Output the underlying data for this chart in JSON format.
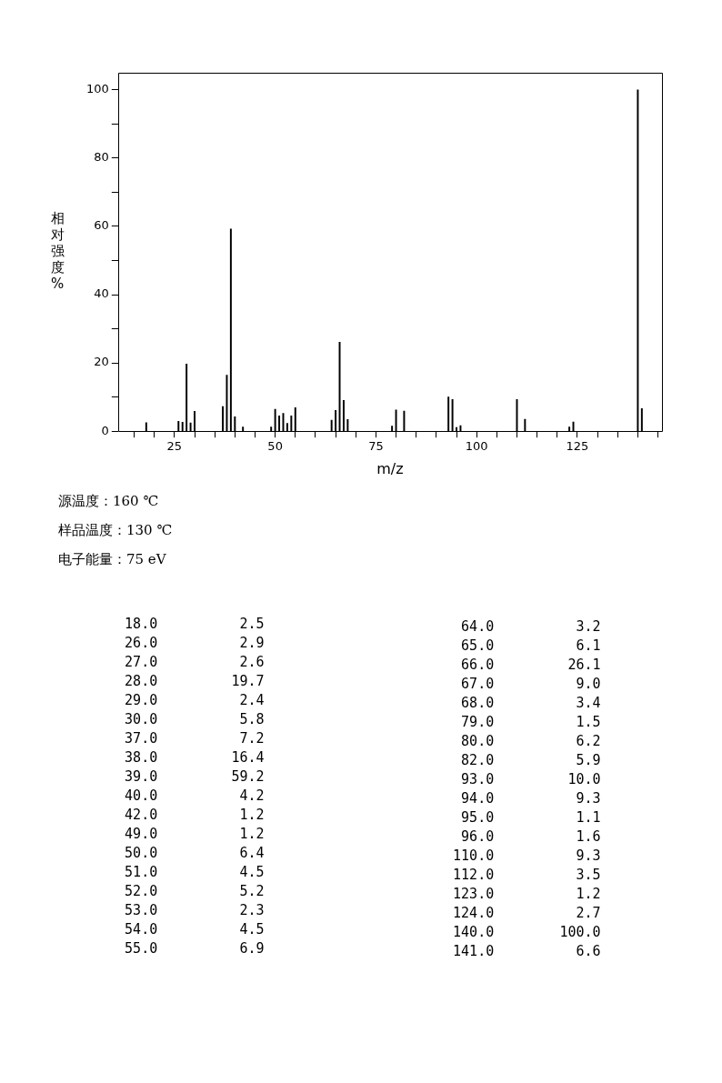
{
  "chart_data": [
    {
      "type": "bar",
      "xlabel": "m/z",
      "ylabel": "相对强度%",
      "color": "#000000",
      "x": [
        18,
        26,
        27,
        28,
        29,
        30,
        37,
        38,
        39,
        40,
        42,
        49,
        50,
        51,
        52,
        53,
        54,
        55,
        64,
        65,
        66,
        67,
        68,
        79,
        80,
        82,
        93,
        94,
        95,
        96,
        110,
        112,
        123,
        124,
        140,
        141
      ],
      "values": [
        2.5,
        2.9,
        2.6,
        19.7,
        2.4,
        5.8,
        7.2,
        16.4,
        59.2,
        4.2,
        1.2,
        1.2,
        6.4,
        4.5,
        5.2,
        2.3,
        4.5,
        6.9,
        3.2,
        6.1,
        26.1,
        9.0,
        3.4,
        1.5,
        6.2,
        5.9,
        10.0,
        9.3,
        1.1,
        1.6,
        9.3,
        3.5,
        1.2,
        2.7,
        100.0,
        6.6
      ],
      "xlim": [
        11,
        146
      ],
      "xticks": [
        {
          "value": 15,
          "label": null
        },
        {
          "value": 20,
          "label": null
        },
        25,
        {
          "value": 30,
          "label": null
        },
        {
          "value": 35,
          "label": null
        },
        {
          "value": 40,
          "label": null
        },
        {
          "value": 45,
          "label": null
        },
        50,
        {
          "value": 55,
          "label": null
        },
        {
          "value": 60,
          "label": null
        },
        {
          "value": 65,
          "label": null
        },
        {
          "value": 70,
          "label": null
        },
        75,
        {
          "value": 80,
          "label": null
        },
        {
          "value": 85,
          "label": null
        },
        {
          "value": 90,
          "label": null
        },
        {
          "value": 95,
          "label": null
        },
        100,
        {
          "value": 105,
          "label": null
        },
        {
          "value": 110,
          "label": null
        },
        {
          "value": 115,
          "label": null
        },
        {
          "value": 120,
          "label": null
        },
        125,
        {
          "value": 130,
          "label": null
        },
        {
          "value": 135,
          "label": null
        },
        {
          "value": 140,
          "label": null
        },
        {
          "value": 145,
          "label": null
        }
      ],
      "ylim": [
        0,
        105
      ],
      "yticks": [
        0,
        {
          "value": 10,
          "label": null
        },
        20,
        {
          "value": 30,
          "label": null
        },
        40,
        {
          "value": 50,
          "label": null
        },
        60,
        {
          "value": 70,
          "label": null
        },
        80,
        {
          "value": 90,
          "label": null
        },
        100
      ],
      "grid": false,
      "legend": false,
      "annotations": [
        "源温度：160 ℃",
        "样品温度：130 ℃",
        "电子能量：75 eV"
      ]
    },
    {
      "type": "other",
      "annotations": [
        "18.0 2.5",
        "26.0 2.9",
        "27.0 2.6",
        "28.0 19.7",
        "29.0 2.4",
        "30.0 5.8",
        "37.0 7.2",
        "38.0 16.4",
        "39.0 59.2",
        "40.0 4.2",
        "42.0 1.2",
        "49.0 1.2",
        "50.0 6.4",
        "51.0 4.5",
        "52.0 5.2",
        "53.0 2.3",
        "54.0 4.5",
        "55.0 6.9",
        "64.0 3.2",
        "65.0 6.1",
        "66.0 26.1",
        "67.0 9.0",
        "68.0 3.4",
        "79.0 1.5",
        "80.0 6.2",
        "82.0 5.9",
        "93.0 10.0",
        "94.0 9.3",
        "95.0 1.1",
        "96.0 1.6",
        "110.0 9.3",
        "112.0 3.5",
        "123.0 1.2",
        "124.0 2.7",
        "140.0 100.0",
        "141.0 6.6"
      ]
    }
  ]
}
